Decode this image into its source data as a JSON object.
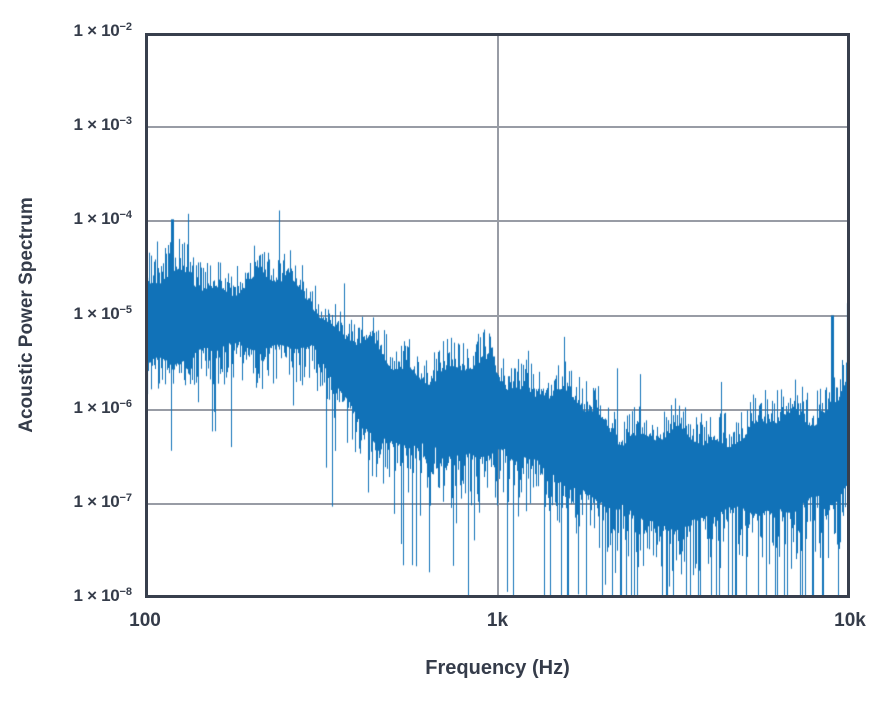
{
  "chart_data": {
    "type": "line",
    "subtype": "noisy-power-spectrum",
    "title": "",
    "xlabel": "Frequency (Hz)",
    "ylabel": "Acoustic Power Spectrum",
    "x_scale": "log",
    "y_scale": "log",
    "xlim": [
      100,
      10000
    ],
    "ylim": [
      1e-08,
      0.01
    ],
    "grid": {
      "horizontal": "every-decade",
      "vertical_at": [
        1000
      ],
      "color": "#989ca5"
    },
    "legend": "none",
    "axis_color": "#383f4d",
    "text_color": "#353c4a",
    "series_color": "#1172b8",
    "background_color": "#ffffff",
    "x_ticks": [
      {
        "label": "100",
        "value": 100,
        "grid": false
      },
      {
        "label": "1k",
        "value": 1000,
        "grid": true
      },
      {
        "label": "10k",
        "value": 10000,
        "grid": false
      }
    ],
    "y_ticks": [
      {
        "base": "1 × 10",
        "exp": "−2",
        "value": 0.01,
        "grid": false
      },
      {
        "base": "1 × 10",
        "exp": "−3",
        "value": 0.001,
        "grid": true
      },
      {
        "base": "1 × 10",
        "exp": "−4",
        "value": 0.0001,
        "grid": true
      },
      {
        "base": "1 × 10",
        "exp": "−5",
        "value": 1e-05,
        "grid": true
      },
      {
        "base": "1 × 10",
        "exp": "−6",
        "value": 1e-06,
        "grid": true
      },
      {
        "base": "1 × 10",
        "exp": "−7",
        "value": 1e-07,
        "grid": true
      },
      {
        "base": "1 × 10",
        "exp": "−8",
        "value": 1e-08,
        "grid": false
      }
    ],
    "envelope_points": [
      {
        "f": 100,
        "top": 4e-05,
        "mid": 8e-06,
        "low": 1.5e-06
      },
      {
        "f": 130,
        "top": 4.5e-05,
        "mid": 9e-06,
        "low": 1.5e-06
      },
      {
        "f": 180,
        "top": 4.5e-05,
        "mid": 1e-05,
        "low": 1.8e-06
      },
      {
        "f": 250,
        "top": 5e-05,
        "mid": 1.1e-05,
        "low": 1.8e-06
      },
      {
        "f": 300,
        "top": 3.5e-05,
        "mid": 9e-06,
        "low": 1.4e-06
      },
      {
        "f": 340,
        "top": 1.6e-05,
        "mid": 4.5e-06,
        "low": 7e-07
      },
      {
        "f": 400,
        "top": 9e-06,
        "mid": 2.2e-06,
        "low": 3e-07
      },
      {
        "f": 500,
        "top": 5.5e-06,
        "mid": 1.2e-06,
        "low": 1.5e-07
      },
      {
        "f": 700,
        "top": 5e-06,
        "mid": 1e-06,
        "low": 1e-07
      },
      {
        "f": 1000,
        "top": 6e-06,
        "mid": 1.1e-06,
        "low": 9e-08
      },
      {
        "f": 1300,
        "top": 4e-06,
        "mid": 8e-07,
        "low": 6e-08
      },
      {
        "f": 1700,
        "top": 2.2e-06,
        "mid": 4.5e-07,
        "low": 4e-08
      },
      {
        "f": 2200,
        "top": 1.2e-06,
        "mid": 2.5e-07,
        "low": 2.5e-08
      },
      {
        "f": 3000,
        "top": 9e-07,
        "mid": 1.8e-07,
        "low": 1.8e-08
      },
      {
        "f": 4000,
        "top": 1.2e-06,
        "mid": 2.2e-07,
        "low": 1.8e-08
      },
      {
        "f": 6000,
        "top": 1.6e-06,
        "mid": 3e-07,
        "low": 2e-08
      },
      {
        "f": 8000,
        "top": 2.2e-06,
        "mid": 4e-07,
        "low": 2e-08
      },
      {
        "f": 9300,
        "top": 3e-06,
        "mid": 5e-07,
        "low": 2.5e-08
      },
      {
        "f": 10000,
        "top": 1.3e-05,
        "mid": 8e-07,
        "low": 3e-08
      }
    ],
    "notable_peaks": [
      {
        "f": 119,
        "value": 0.000105
      },
      {
        "f": 8900,
        "value": 1e-05
      },
      {
        "f": 9870,
        "value": 1.35e-05
      }
    ],
    "noise_seed": 20
  }
}
